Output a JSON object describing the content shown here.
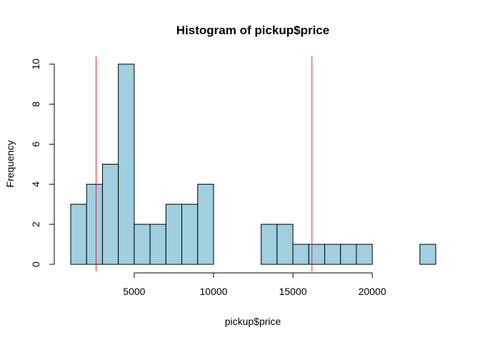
{
  "chart_data": {
    "type": "bar",
    "title": "Histogram of pickup$price",
    "xlabel": "pickup$price",
    "ylabel": "Frequency",
    "bar_color": "#a0cfe0",
    "bin_edges": [
      1000,
      2000,
      3000,
      4000,
      5000,
      6000,
      7000,
      8000,
      9000,
      10000,
      11000,
      12000,
      13000,
      14000,
      15000,
      16000,
      17000,
      18000,
      19000,
      20000,
      21000,
      22000,
      23000,
      24000
    ],
    "values": [
      3,
      4,
      5,
      10,
      2,
      2,
      3,
      3,
      4,
      0,
      0,
      0,
      2,
      2,
      1,
      1,
      1,
      1,
      1,
      0,
      0,
      0,
      1
    ],
    "x_ticks": [
      5000,
      10000,
      15000,
      20000
    ],
    "x_tick_labels": [
      "5000",
      "10000",
      "15000",
      "20000"
    ],
    "y_ticks": [
      0,
      2,
      4,
      6,
      8,
      10
    ],
    "y_tick_labels": [
      "0",
      "2",
      "4",
      "6",
      "8",
      "10"
    ],
    "xlim": [
      0,
      25000
    ],
    "ylim": [
      0,
      10
    ],
    "vlines": [
      {
        "x": 2600,
        "color": "#e8262a"
      },
      {
        "x": 16200,
        "color": "#e8262a"
      }
    ]
  }
}
